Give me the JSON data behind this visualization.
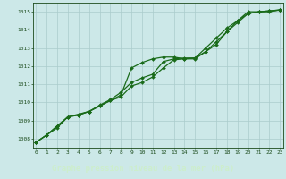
{
  "title": "Graphe pression niveau de la mer (hPa)",
  "bg_color": "#cce8e8",
  "grid_color": "#aacccc",
  "line_color": "#1a6b1a",
  "marker_color": "#1a6b1a",
  "text_color": "#1a4a1a",
  "label_bg_color": "#2a5a2a",
  "label_text_color": "#cceecc",
  "ylim": [
    1007.5,
    1015.5
  ],
  "xlim": [
    -0.3,
    23.3
  ],
  "yticks": [
    1008,
    1009,
    1010,
    1011,
    1012,
    1013,
    1014,
    1015
  ],
  "xticks": [
    0,
    1,
    2,
    3,
    4,
    5,
    6,
    7,
    8,
    9,
    10,
    11,
    12,
    13,
    14,
    15,
    16,
    17,
    18,
    19,
    20,
    21,
    22,
    23
  ],
  "line1": [
    1007.8,
    1008.2,
    1008.6,
    1009.2,
    1009.3,
    1009.5,
    1009.8,
    1010.1,
    1010.4,
    1011.9,
    1012.2,
    1012.4,
    1012.5,
    1012.5,
    1012.4,
    1012.4,
    1012.8,
    1013.2,
    1013.9,
    1014.4,
    1014.9,
    1015.0,
    1015.0,
    1015.1
  ],
  "line2": [
    1007.8,
    1008.2,
    1008.7,
    1009.2,
    1009.35,
    1009.5,
    1009.85,
    1010.15,
    1010.55,
    1011.1,
    1011.35,
    1011.55,
    1012.25,
    1012.4,
    1012.45,
    1012.45,
    1013.0,
    1013.55,
    1014.1,
    1014.5,
    1015.0,
    1015.0,
    1015.05,
    1015.1
  ],
  "line3": [
    1007.8,
    1008.2,
    1008.7,
    1009.2,
    1009.3,
    1009.5,
    1009.8,
    1010.1,
    1010.3,
    1010.9,
    1011.1,
    1011.4,
    1011.9,
    1012.35,
    1012.4,
    1012.45,
    1012.8,
    1013.35,
    1013.9,
    1014.5,
    1014.9,
    1015.0,
    1015.05,
    1015.1
  ]
}
